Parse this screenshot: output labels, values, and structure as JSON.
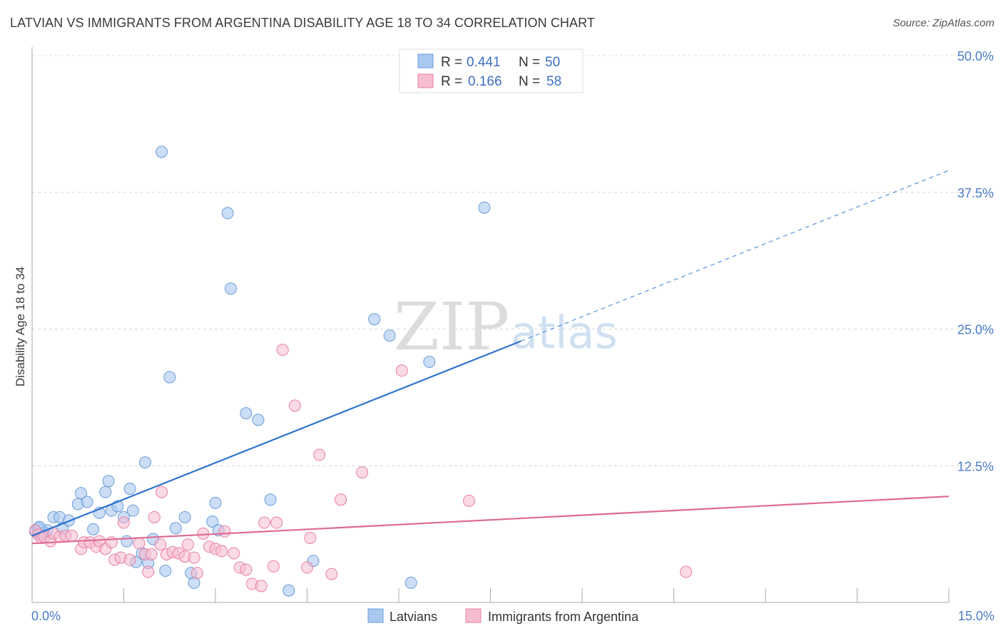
{
  "title": "LATVIAN VS IMMIGRANTS FROM ARGENTINA DISABILITY AGE 18 TO 34 CORRELATION CHART",
  "source": "Source: ZipAtlas.com",
  "watermark": {
    "zip": "ZIP",
    "atlas": "atlas"
  },
  "legend_top": [
    {
      "r_label": "R =",
      "r_value": "0.441",
      "n_label": "N =",
      "n_value": "50"
    },
    {
      "r_label": "R =",
      "r_value": "0.166",
      "n_label": "N =",
      "n_value": "58"
    }
  ],
  "chart_data": {
    "type": "scatter",
    "title": "LATVIAN VS IMMIGRANTS FROM ARGENTINA DISABILITY AGE 18 TO 34 CORRELATION CHART",
    "xlabel": "",
    "ylabel": "Disability Age 18 to 34",
    "xlim": [
      0,
      15
    ],
    "ylim": [
      0,
      50
    ],
    "x_tick_labels": [
      "0.0%",
      "15.0%"
    ],
    "y_ticks": [
      12.5,
      25.0,
      37.5,
      50.0
    ],
    "y_tick_labels": [
      "12.5%",
      "25.0%",
      "37.5%",
      "50.0%"
    ],
    "grid": true,
    "legend_position": "top-center",
    "colors": {
      "latvians_fill": "#a8c8f0",
      "latvians_stroke": "#6b9bd8",
      "latvians_line": "#2f74d0",
      "argentina_fill": "#f6bcd0",
      "argentina_stroke": "#e87fa4",
      "argentina_line": "#e06a93"
    },
    "series": [
      {
        "name": "Latvians",
        "r": 0.441,
        "n": 50,
        "trend": {
          "x0": 0.0,
          "y0": 6.1,
          "x1": 8.0,
          "y1": 23.9,
          "dash_to_x": 15.0,
          "dash_to_y": 39.5
        },
        "points": [
          [
            0.05,
            6.5
          ],
          [
            0.1,
            6.8
          ],
          [
            0.15,
            6.2
          ],
          [
            0.2,
            6.4
          ],
          [
            0.25,
            6.6
          ],
          [
            0.35,
            7.8
          ],
          [
            0.45,
            7.8
          ],
          [
            0.5,
            6.8
          ],
          [
            0.6,
            7.5
          ],
          [
            0.75,
            9.0
          ],
          [
            0.8,
            10.0
          ],
          [
            0.9,
            9.2
          ],
          [
            1.0,
            6.7
          ],
          [
            1.1,
            8.2
          ],
          [
            1.2,
            10.1
          ],
          [
            1.25,
            11.1
          ],
          [
            1.3,
            8.4
          ],
          [
            1.4,
            8.8
          ],
          [
            1.5,
            7.8
          ],
          [
            1.55,
            5.6
          ],
          [
            1.6,
            10.4
          ],
          [
            1.65,
            8.4
          ],
          [
            1.7,
            3.7
          ],
          [
            1.8,
            4.5
          ],
          [
            1.85,
            12.8
          ],
          [
            1.9,
            3.6
          ],
          [
            1.98,
            5.8
          ],
          [
            2.12,
            41.2
          ],
          [
            2.18,
            2.9
          ],
          [
            2.25,
            20.6
          ],
          [
            2.35,
            6.8
          ],
          [
            2.5,
            7.8
          ],
          [
            2.6,
            2.7
          ],
          [
            2.65,
            1.8
          ],
          [
            2.95,
            7.4
          ],
          [
            3.0,
            9.1
          ],
          [
            3.05,
            6.6
          ],
          [
            3.2,
            35.6
          ],
          [
            3.25,
            28.7
          ],
          [
            3.5,
            17.3
          ],
          [
            3.7,
            16.7
          ],
          [
            3.9,
            9.4
          ],
          [
            4.2,
            1.1
          ],
          [
            4.6,
            3.8
          ],
          [
            5.6,
            25.9
          ],
          [
            5.85,
            24.4
          ],
          [
            6.2,
            1.8
          ],
          [
            6.5,
            22.0
          ],
          [
            7.4,
            36.1
          ],
          [
            0.12,
            6.9
          ]
        ]
      },
      {
        "name": "Immigrants from Argentina",
        "r": 0.166,
        "n": 58,
        "trend": {
          "x0": 0.0,
          "y0": 5.4,
          "x1": 15.0,
          "y1": 9.7
        },
        "points": [
          [
            0.05,
            6.6
          ],
          [
            0.1,
            6.2
          ],
          [
            0.15,
            5.9
          ],
          [
            0.2,
            6.0
          ],
          [
            0.3,
            5.6
          ],
          [
            0.35,
            6.3
          ],
          [
            0.45,
            6.0
          ],
          [
            0.55,
            6.1
          ],
          [
            0.65,
            6.1
          ],
          [
            0.8,
            4.9
          ],
          [
            0.85,
            5.5
          ],
          [
            0.95,
            5.5
          ],
          [
            1.05,
            5.1
          ],
          [
            1.1,
            5.6
          ],
          [
            1.2,
            4.9
          ],
          [
            1.3,
            5.5
          ],
          [
            1.35,
            3.9
          ],
          [
            1.45,
            4.1
          ],
          [
            1.5,
            7.3
          ],
          [
            1.6,
            3.9
          ],
          [
            1.75,
            5.4
          ],
          [
            1.85,
            4.4
          ],
          [
            1.9,
            2.8
          ],
          [
            1.95,
            4.4
          ],
          [
            2.0,
            7.8
          ],
          [
            2.1,
            5.3
          ],
          [
            2.12,
            10.1
          ],
          [
            2.2,
            4.4
          ],
          [
            2.3,
            4.6
          ],
          [
            2.4,
            4.5
          ],
          [
            2.5,
            4.2
          ],
          [
            2.55,
            5.3
          ],
          [
            2.65,
            4.1
          ],
          [
            2.7,
            2.7
          ],
          [
            2.8,
            6.3
          ],
          [
            2.9,
            5.1
          ],
          [
            3.0,
            4.9
          ],
          [
            3.1,
            4.7
          ],
          [
            3.15,
            6.5
          ],
          [
            3.3,
            4.5
          ],
          [
            3.4,
            3.2
          ],
          [
            3.5,
            3.0
          ],
          [
            3.6,
            1.7
          ],
          [
            3.75,
            1.5
          ],
          [
            3.8,
            7.3
          ],
          [
            3.95,
            3.3
          ],
          [
            4.0,
            7.3
          ],
          [
            4.1,
            23.1
          ],
          [
            4.3,
            18.0
          ],
          [
            4.5,
            3.2
          ],
          [
            4.55,
            5.9
          ],
          [
            4.7,
            13.5
          ],
          [
            4.9,
            2.6
          ],
          [
            5.05,
            9.4
          ],
          [
            5.4,
            11.9
          ],
          [
            6.05,
            21.2
          ],
          [
            7.15,
            9.3
          ],
          [
            10.7,
            2.8
          ]
        ]
      }
    ]
  },
  "bottom_legend": [
    {
      "label": "Latvians"
    },
    {
      "label": "Immigrants from Argentina"
    }
  ]
}
